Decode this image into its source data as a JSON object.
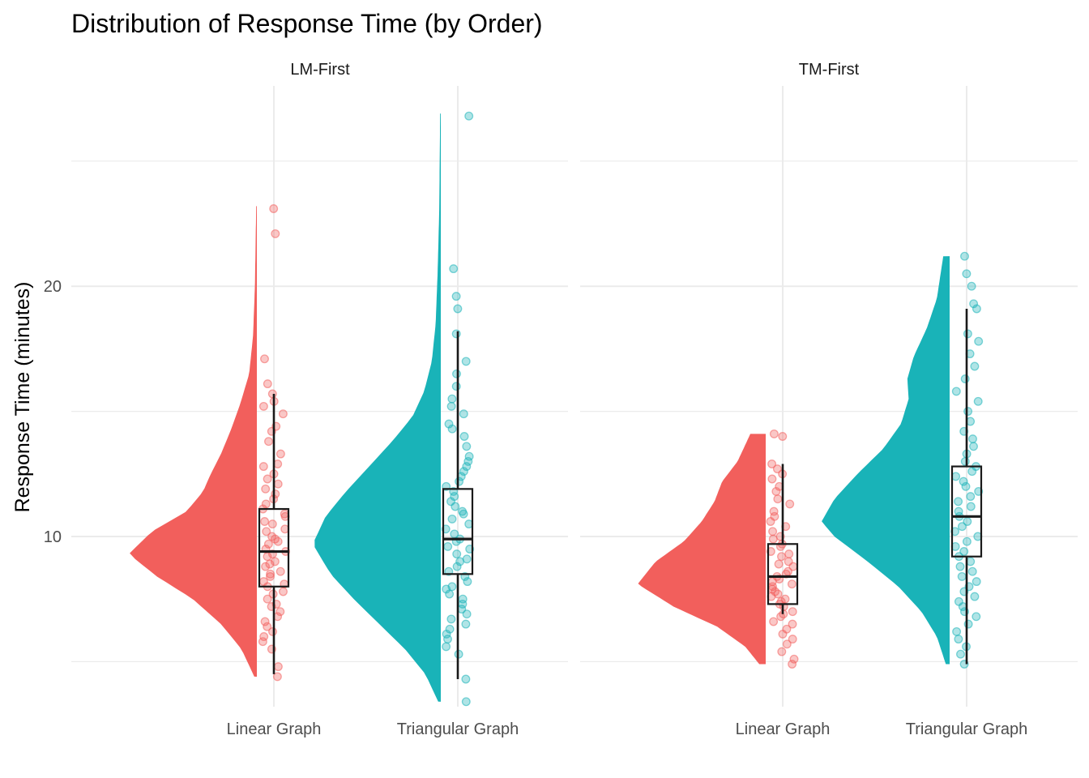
{
  "chart_data": {
    "type": "raincloud",
    "title": "Distribution of Response Time (by Order)",
    "ylabel": "Response Time (minutes)",
    "xlabel": "",
    "ylim": [
      3.2,
      28.2
    ],
    "yticks": [
      10,
      20
    ],
    "grid": true,
    "categories": [
      "Linear Graph",
      "Triangular Graph"
    ],
    "colors": {
      "Linear Graph": "#f25f5c",
      "Triangular Graph": "#19b3b8"
    },
    "panels": [
      {
        "name": "LM-First",
        "groups": [
          {
            "category": "Linear Graph",
            "box": {
              "min": 4.5,
              "q1": 8.0,
              "median": 9.4,
              "q3": 11.1,
              "max": 15.7
            },
            "density": {
              "min": 4.4,
              "max": 23.2,
              "peak": 9.3,
              "shape": [
                [
                  4.4,
                  0.02
                ],
                [
                  5.5,
                  0.12
                ],
                [
                  6.5,
                  0.28
                ],
                [
                  7.5,
                  0.5
                ],
                [
                  8.4,
                  0.78
                ],
                [
                  9.3,
                  1.0
                ],
                [
                  10.2,
                  0.82
                ],
                [
                  11.0,
                  0.55
                ],
                [
                  11.8,
                  0.42
                ],
                [
                  12.5,
                  0.36
                ],
                [
                  13.3,
                  0.28
                ],
                [
                  14.3,
                  0.2
                ],
                [
                  15.3,
                  0.13
                ],
                [
                  16.5,
                  0.06
                ],
                [
                  18.0,
                  0.03
                ],
                [
                  20.0,
                  0.015
                ],
                [
                  23.2,
                  0.005
                ]
              ]
            },
            "points": [
              23.1,
              22.1,
              17.1,
              16.1,
              15.7,
              15.4,
              15.2,
              14.9,
              14.4,
              14.2,
              13.8,
              13.3,
              12.9,
              12.8,
              12.5,
              12.3,
              12.1,
              11.9,
              11.7,
              11.5,
              11.3,
              11.1,
              10.9,
              10.8,
              10.6,
              10.5,
              10.3,
              10.2,
              10.0,
              9.9,
              9.8,
              9.7,
              9.5,
              9.4,
              9.3,
              9.2,
              9.0,
              8.9,
              8.8,
              8.6,
              8.5,
              8.4,
              8.2,
              8.1,
              8.0,
              7.8,
              7.7,
              7.5,
              7.3,
              7.2,
              7.0,
              6.8,
              6.6,
              6.4,
              6.2,
              6.0,
              5.8,
              5.5,
              4.8,
              4.4
            ]
          },
          {
            "category": "Triangular Graph",
            "box": {
              "min": 4.3,
              "q1": 8.5,
              "median": 9.9,
              "q3": 11.9,
              "max": 18.2
            },
            "density": {
              "min": 3.4,
              "max": 26.9,
              "peak": 9.7,
              "shape": [
                [
                  3.4,
                  0.02
                ],
                [
                  4.5,
                  0.12
                ],
                [
                  5.5,
                  0.28
                ],
                [
                  6.5,
                  0.48
                ],
                [
                  7.5,
                  0.68
                ],
                [
                  8.5,
                  0.86
                ],
                [
                  9.7,
                  1.0
                ],
                [
                  10.8,
                  0.9
                ],
                [
                  11.8,
                  0.74
                ],
                [
                  12.8,
                  0.56
                ],
                [
                  13.8,
                  0.38
                ],
                [
                  14.8,
                  0.22
                ],
                [
                  15.8,
                  0.13
                ],
                [
                  17.0,
                  0.07
                ],
                [
                  18.5,
                  0.04
                ],
                [
                  20.5,
                  0.025
                ],
                [
                  23.0,
                  0.012
                ],
                [
                  26.9,
                  0.005
                ]
              ]
            },
            "points": [
              26.8,
              20.7,
              19.6,
              19.1,
              18.1,
              17.0,
              16.5,
              16.0,
              15.5,
              15.2,
              14.9,
              14.5,
              14.3,
              14.0,
              13.6,
              13.2,
              13.0,
              12.8,
              12.6,
              12.4,
              12.2,
              12.0,
              11.8,
              11.6,
              11.4,
              11.2,
              11.0,
              10.9,
              10.7,
              10.5,
              10.3,
              10.1,
              9.9,
              9.8,
              9.6,
              9.5,
              9.3,
              9.1,
              9.0,
              8.8,
              8.6,
              8.4,
              8.2,
              8.0,
              7.9,
              7.7,
              7.5,
              7.3,
              7.1,
              6.9,
              6.7,
              6.5,
              6.3,
              6.1,
              5.9,
              5.6,
              5.3,
              4.3,
              3.4
            ]
          }
        ]
      },
      {
        "name": "TM-First",
        "groups": [
          {
            "category": "Linear Graph",
            "box": {
              "min": 6.9,
              "q1": 7.3,
              "median": 8.4,
              "q3": 9.7,
              "max": 12.9
            },
            "density": {
              "min": 4.9,
              "max": 14.1,
              "peak": 8.1,
              "shape": [
                [
                  4.9,
                  0.05
                ],
                [
                  5.6,
                  0.16
                ],
                [
                  6.4,
                  0.38
                ],
                [
                  7.2,
                  0.72
                ],
                [
                  8.1,
                  1.0
                ],
                [
                  9.0,
                  0.86
                ],
                [
                  9.8,
                  0.64
                ],
                [
                  10.6,
                  0.5
                ],
                [
                  11.4,
                  0.4
                ],
                [
                  12.2,
                  0.34
                ],
                [
                  13.0,
                  0.22
                ],
                [
                  14.1,
                  0.12
                ]
              ]
            },
            "points": [
              14.1,
              14.0,
              12.9,
              12.7,
              12.5,
              12.3,
              12.0,
              11.8,
              11.5,
              11.3,
              11.0,
              10.8,
              10.6,
              10.4,
              10.2,
              10.0,
              9.9,
              9.7,
              9.6,
              9.4,
              9.3,
              9.2,
              9.0,
              8.9,
              8.8,
              8.6,
              8.5,
              8.4,
              8.3,
              8.2,
              8.1,
              8.0,
              7.9,
              7.8,
              7.7,
              7.6,
              7.5,
              7.4,
              7.3,
              7.2,
              7.0,
              6.9,
              6.8,
              6.6,
              6.5,
              6.3,
              6.1,
              5.9,
              5.7,
              5.4,
              5.1,
              4.9
            ]
          },
          {
            "category": "Triangular Graph",
            "box": {
              "min": 4.9,
              "q1": 9.2,
              "median": 10.8,
              "q3": 12.8,
              "max": 19.1
            },
            "density": {
              "min": 4.9,
              "max": 21.2,
              "peak": 10.6,
              "shape": [
                [
                  4.9,
                  0.03
                ],
                [
                  6.0,
                  0.1
                ],
                [
                  7.0,
                  0.22
                ],
                [
                  8.0,
                  0.4
                ],
                [
                  9.0,
                  0.64
                ],
                [
                  10.0,
                  0.9
                ],
                [
                  10.6,
                  1.0
                ],
                [
                  11.5,
                  0.9
                ],
                [
                  12.5,
                  0.72
                ],
                [
                  13.5,
                  0.52
                ],
                [
                  14.5,
                  0.38
                ],
                [
                  15.5,
                  0.32
                ],
                [
                  16.3,
                  0.33
                ],
                [
                  17.2,
                  0.28
                ],
                [
                  18.3,
                  0.18
                ],
                [
                  19.5,
                  0.1
                ],
                [
                  21.2,
                  0.05
                ]
              ]
            },
            "points": [
              21.2,
              20.5,
              20.0,
              19.3,
              19.1,
              18.1,
              17.8,
              17.3,
              16.8,
              16.3,
              15.8,
              15.4,
              15.0,
              14.6,
              14.2,
              13.9,
              13.6,
              13.3,
              13.0,
              12.8,
              12.6,
              12.4,
              12.2,
              12.0,
              11.8,
              11.6,
              11.4,
              11.2,
              11.0,
              10.8,
              10.6,
              10.4,
              10.2,
              10.0,
              9.8,
              9.6,
              9.4,
              9.2,
              9.0,
              8.8,
              8.6,
              8.4,
              8.2,
              8.0,
              7.8,
              7.6,
              7.4,
              7.2,
              7.0,
              6.8,
              6.5,
              6.2,
              5.9,
              5.6,
              5.3,
              4.9
            ]
          }
        ]
      }
    ]
  }
}
